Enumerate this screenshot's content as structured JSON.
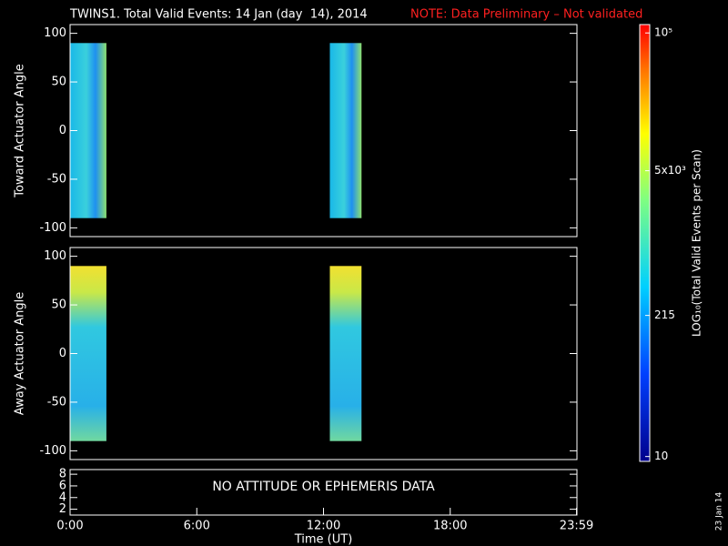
{
  "header": {
    "title": "TWINS1. Total Valid Events: 14 Jan (day  14), 2014",
    "note": "NOTE: Data Preliminary – Not validated"
  },
  "chart_data": [
    {
      "type": "spectrogram",
      "ylabel": "Toward Actuator Angle",
      "ylim": [
        -109,
        109
      ],
      "yticks": [
        -100,
        -50,
        0,
        50,
        100
      ],
      "xlim": [
        0,
        24
      ],
      "spans": [
        [
          0,
          1.72
        ],
        [
          12.3,
          13.8
        ]
      ],
      "span_ylim": [
        -90,
        90
      ]
    },
    {
      "type": "spectrogram",
      "ylabel": "Away Actuator Angle",
      "ylim": [
        -109,
        109
      ],
      "yticks": [
        -100,
        -50,
        0,
        50,
        100
      ],
      "xlim": [
        0,
        24
      ],
      "spans": [
        [
          0,
          1.72
        ],
        [
          12.3,
          13.8
        ]
      ],
      "span_ylim": [
        -90,
        90
      ]
    },
    {
      "type": "empty",
      "annotation": "NO ATTITUDE OR EPHEMERIS DATA",
      "ylim": [
        1,
        8.8
      ],
      "yticks": [
        2,
        4,
        6,
        8
      ],
      "xlim": [
        0,
        24
      ],
      "xlabel": "Time (UT)",
      "xticks": [
        {
          "value": 0,
          "label": "0:00"
        },
        {
          "value": 6,
          "label": "6:00"
        },
        {
          "value": 12,
          "label": "12:00"
        },
        {
          "value": 18,
          "label": "18:00"
        },
        {
          "value": 23.98,
          "label": "23:59"
        }
      ]
    }
  ],
  "colorbar": {
    "label": "LOG₁₀(Total Valid Events per Scan)",
    "log": true,
    "clim": [
      9,
      120000
    ],
    "ticks": [
      {
        "value": 10,
        "label": "10"
      },
      {
        "value": 215,
        "label": "215"
      },
      {
        "value": 5000,
        "label": "5x10³"
      },
      {
        "value": 100000,
        "label": "10⁵"
      }
    ]
  },
  "footer": "23 Jan 14"
}
